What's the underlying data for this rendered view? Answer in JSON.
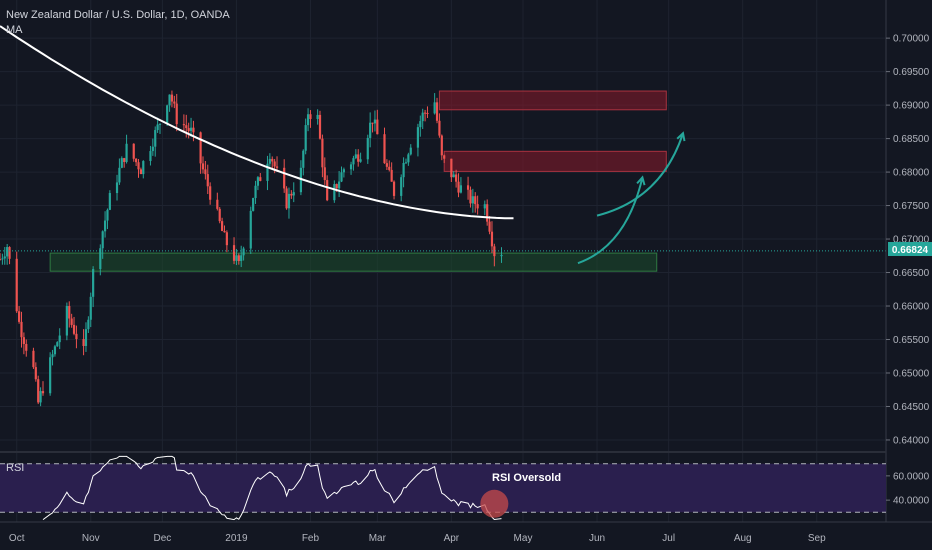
{
  "colors": {
    "background": "#131722",
    "grid": "#1e2330",
    "up": "#26a69a",
    "down": "#ef5350",
    "ma_line": "#ffffff",
    "price_label_bg": "#26a69a",
    "rsi_band": "#2a1f4e",
    "rsi_line": "#ffffff",
    "supply_zone": "#8b1a2a",
    "demand_zone": "#1b4d2b",
    "arrow": "#26a69a"
  },
  "chart_data": [
    {
      "type": "candlestick",
      "title": "New Zealand Dollar / U.S. Dollar, 1D, OANDA",
      "indicator_label": "MA",
      "x_ticks": [
        "Oct",
        "Nov",
        "Dec",
        "2019",
        "Feb",
        "Mar",
        "Apr",
        "May",
        "Jun",
        "Jul",
        "Aug",
        "Sep"
      ],
      "y_ticks": [
        "0.70000",
        "0.69500",
        "0.69000",
        "0.68500",
        "0.68000",
        "0.67500",
        "0.67000",
        "0.66500",
        "0.66000",
        "0.65500",
        "0.65000",
        "0.64500",
        "0.64000"
      ],
      "ylim": [
        0.6385,
        0.7045
      ],
      "current_price": "0.66824",
      "ma_period_estimate": 200,
      "ma_end_value": 0.6731,
      "zones": [
        {
          "kind": "supply",
          "from": 0.6893,
          "to": 0.6921,
          "start": "2019-03-27",
          "end": "2019-06-30"
        },
        {
          "kind": "supply",
          "from": 0.6801,
          "to": 0.6831,
          "start": "2019-03-29",
          "end": "2019-06-30"
        },
        {
          "kind": "demand",
          "from": 0.6652,
          "to": 0.6679,
          "start": "2018-10-15",
          "end": "2019-06-26"
        }
      ],
      "arrows": [
        {
          "from_date": "2019-05-24",
          "from_price": 0.6664,
          "to_date": "2019-06-20",
          "to_price": 0.6792
        },
        {
          "from_date": "2019-06-01",
          "from_price": 0.6735,
          "to_date": "2019-07-07",
          "to_price": 0.6858
        }
      ],
      "price_waypoints": [
        [
          "2018-09-24",
          0.667
        ],
        [
          "2018-09-27",
          0.669
        ],
        [
          "2018-10-02",
          0.6575
        ],
        [
          "2018-10-08",
          0.6505
        ],
        [
          "2018-10-10",
          0.6455
        ],
        [
          "2018-10-15",
          0.6515
        ],
        [
          "2018-10-22",
          0.659
        ],
        [
          "2018-10-29",
          0.653
        ],
        [
          "2018-11-02",
          0.665
        ],
        [
          "2018-11-09",
          0.676
        ],
        [
          "2018-11-16",
          0.6835
        ],
        [
          "2018-11-22",
          0.6805
        ],
        [
          "2018-11-30",
          0.6875
        ],
        [
          "2018-12-04",
          0.692
        ],
        [
          "2018-12-07",
          0.688
        ],
        [
          "2018-12-13",
          0.686
        ],
        [
          "2018-12-20",
          0.678
        ],
        [
          "2018-12-27",
          0.67
        ],
        [
          "2019-01-02",
          0.666
        ],
        [
          "2019-01-08",
          0.6765
        ],
        [
          "2019-01-15",
          0.683
        ],
        [
          "2019-01-22",
          0.6755
        ],
        [
          "2019-01-28",
          0.68
        ],
        [
          "2019-01-31",
          0.689
        ],
        [
          "2019-02-04",
          0.688
        ],
        [
          "2019-02-08",
          0.675
        ],
        [
          "2019-02-15",
          0.6805
        ],
        [
          "2019-02-22",
          0.683
        ],
        [
          "2019-02-27",
          0.688
        ],
        [
          "2019-03-05",
          0.6805
        ],
        [
          "2019-03-08",
          0.677
        ],
        [
          "2019-03-15",
          0.6845
        ],
        [
          "2019-03-20",
          0.6885
        ],
        [
          "2019-03-25",
          0.6905
        ],
        [
          "2019-03-28",
          0.682
        ],
        [
          "2019-04-04",
          0.678
        ],
        [
          "2019-04-10",
          0.6755
        ],
        [
          "2019-04-15",
          0.675
        ],
        [
          "2019-04-17",
          0.672
        ],
        [
          "2019-04-19",
          0.668
        ],
        [
          "2019-04-22",
          0.6682
        ]
      ]
    },
    {
      "type": "line",
      "title": "RSI",
      "annotation": "RSI Oversold",
      "y_ticks": [
        "60.0000",
        "40.0000"
      ],
      "upper_band": 70,
      "lower_band": 30,
      "ylim": [
        22,
        78
      ],
      "x_ticks": [
        "Oct",
        "Nov",
        "Dec",
        "2019",
        "Feb",
        "Mar",
        "Apr",
        "May",
        "Jun",
        "Jul",
        "Aug",
        "Sep"
      ],
      "oversold_marker": {
        "date": "2019-04-19",
        "value": 37
      }
    }
  ]
}
